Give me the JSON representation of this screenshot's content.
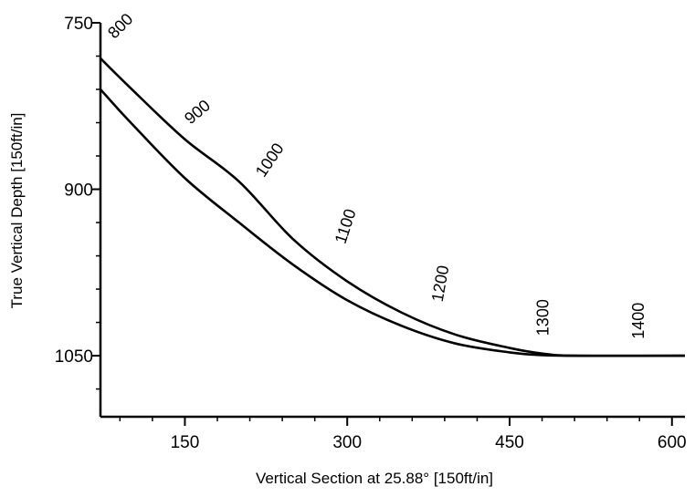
{
  "chart_data": {
    "type": "line",
    "title": "",
    "xlabel": "Vertical Section at 25.88° [150ft/in]",
    "ylabel": "True Vertical Depth [150ft/in]",
    "xlim": [
      72,
      612
    ],
    "ylim": [
      750,
      1105
    ],
    "y_inverted": true,
    "grid": false,
    "x_ticks": [
      {
        "value": 150,
        "label": "150"
      },
      {
        "value": 300,
        "label": "300"
      },
      {
        "value": 450,
        "label": "450"
      },
      {
        "value": 600,
        "label": "600"
      }
    ],
    "y_ticks": [
      {
        "value": 750,
        "label": "750"
      },
      {
        "value": 900,
        "label": "900"
      },
      {
        "value": 1050,
        "label": "1050"
      }
    ],
    "series": [
      {
        "color": "#000000",
        "points": [
          {
            "x": 72,
            "y": 782
          },
          {
            "x": 100,
            "y": 809
          },
          {
            "x": 150,
            "y": 855
          },
          {
            "x": 200,
            "y": 893
          },
          {
            "x": 250,
            "y": 945
          },
          {
            "x": 300,
            "y": 983
          },
          {
            "x": 350,
            "y": 1011
          },
          {
            "x": 400,
            "y": 1031
          },
          {
            "x": 450,
            "y": 1043
          },
          {
            "x": 480,
            "y": 1048
          },
          {
            "x": 510,
            "y": 1050
          },
          {
            "x": 612,
            "y": 1050
          }
        ]
      },
      {
        "color": "#000000",
        "points": [
          {
            "x": 72,
            "y": 810
          },
          {
            "x": 100,
            "y": 840
          },
          {
            "x": 150,
            "y": 890
          },
          {
            "x": 200,
            "y": 930
          },
          {
            "x": 250,
            "y": 968
          },
          {
            "x": 300,
            "y": 1000
          },
          {
            "x": 350,
            "y": 1023
          },
          {
            "x": 400,
            "y": 1039
          },
          {
            "x": 450,
            "y": 1047
          },
          {
            "x": 480,
            "y": 1049.5
          },
          {
            "x": 510,
            "y": 1050
          },
          {
            "x": 612,
            "y": 1050
          }
        ]
      }
    ],
    "annotations": [
      {
        "text": "800",
        "x": 85,
        "y": 765,
        "angle": -45
      },
      {
        "text": "900",
        "x": 155,
        "y": 842,
        "angle": -40
      },
      {
        "text": "1000",
        "x": 223,
        "y": 890,
        "angle": -56
      },
      {
        "text": "1100",
        "x": 298,
        "y": 950,
        "angle": -72
      },
      {
        "text": "1200",
        "x": 388,
        "y": 1002,
        "angle": -80
      },
      {
        "text": "1300",
        "x": 486,
        "y": 1032,
        "angle": -90
      },
      {
        "text": "1400",
        "x": 574,
        "y": 1035,
        "angle": -90
      }
    ]
  }
}
